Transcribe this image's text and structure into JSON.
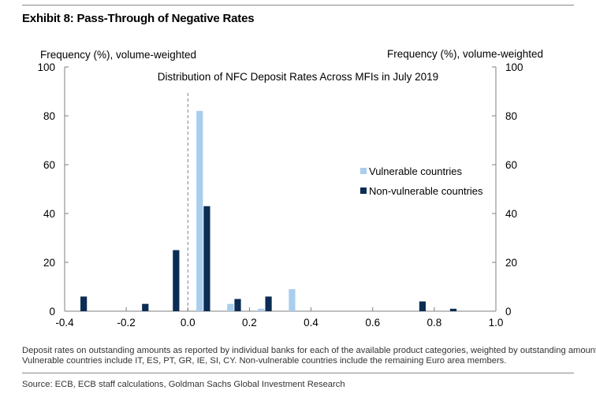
{
  "exhibit_title": "Exhibit 8: Pass-Through of Negative Rates",
  "notes": [
    "Deposit rates on outstanding amounts as reported by individual banks for each of the available product categories, weighted by outstanding amounts.",
    "Vulnerable countries include IT, ES, PT, GR, IE, SI, CY. Non-vulnerable countries include the remaining Euro area members."
  ],
  "source": "Source: ECB, ECB staff calculations, Goldman Sachs Global Investment Research",
  "colors": {
    "vulnerable": "#a9cdee",
    "non_vulnerable": "#0b2c55",
    "axis": "#7f7f7f",
    "zero_line": "#7f7f7f"
  },
  "chart_data": {
    "type": "bar",
    "title": "Distribution of NFC Deposit Rates Across MFIs in July 2019",
    "ylabel_left": "Frequency (%), volume-weighted",
    "ylabel_right": "Frequency (%), volume-weighted",
    "xlabel": "",
    "xlim": [
      -0.4,
      1.0
    ],
    "ylim": [
      0,
      100
    ],
    "x_ticks": [
      -0.4,
      -0.2,
      0.0,
      0.2,
      0.4,
      0.6,
      0.8,
      1.0
    ],
    "x_tick_labels": [
      "-0.4",
      "-0.2",
      "0.0",
      "0.2",
      "0.4",
      "0.6",
      "0.8",
      "1.0"
    ],
    "y_ticks": [
      0,
      20,
      40,
      60,
      80,
      100
    ],
    "y_tick_labels": [
      "0",
      "20",
      "40",
      "60",
      "80",
      "100"
    ],
    "bin_centers": [
      -0.35,
      -0.25,
      -0.15,
      -0.05,
      0.05,
      0.15,
      0.25,
      0.35,
      0.45,
      0.55,
      0.65,
      0.75,
      0.85,
      0.95
    ],
    "series": [
      {
        "name": "Vulnerable countries",
        "key": "vulnerable",
        "values": [
          0,
          0,
          0,
          0,
          82,
          3,
          1,
          9,
          0,
          0,
          0,
          0,
          0,
          0
        ]
      },
      {
        "name": "Non-vulnerable countries",
        "key": "non_vulnerable",
        "values": [
          6,
          0,
          3,
          25,
          43,
          5,
          6,
          0,
          0,
          0,
          0,
          4,
          1,
          0
        ]
      }
    ],
    "legend_position": "center-right",
    "reference_line_x": 0.0
  }
}
